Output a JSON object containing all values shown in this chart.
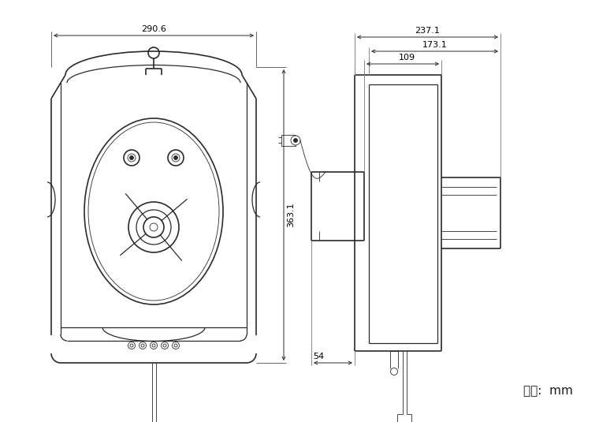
{
  "bg_color": "#ffffff",
  "line_color": "#2a2a2a",
  "dim_color": "#1a1a1a",
  "fig_width": 7.6,
  "fig_height": 5.35,
  "unit_label": "单位:  mm",
  "dim_290_6": "290.6",
  "dim_363_1": "363.1",
  "dim_237_1": "237.1",
  "dim_173_1": "173.1",
  "dim_109": "109",
  "dim_54": "54"
}
